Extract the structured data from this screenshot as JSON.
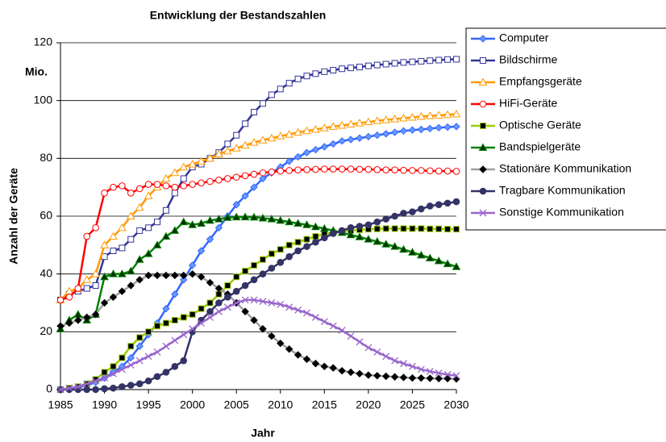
{
  "chart_data": {
    "type": "line",
    "title": "Entwicklung der Bestandszahlen",
    "x_label": "Jahr",
    "y_label": "Anzahl der Geräte",
    "annotation": "Mio.",
    "x": [
      1985,
      1986,
      1987,
      1988,
      1989,
      1990,
      1991,
      1992,
      1993,
      1994,
      1995,
      1996,
      1997,
      1998,
      1999,
      2000,
      2001,
      2002,
      2003,
      2004,
      2005,
      2006,
      2007,
      2008,
      2009,
      2010,
      2011,
      2012,
      2013,
      2014,
      2015,
      2016,
      2017,
      2018,
      2019,
      2020,
      2021,
      2022,
      2023,
      2024,
      2025,
      2026,
      2027,
      2028,
      2029,
      2030
    ],
    "xlim": [
      1985,
      2030
    ],
    "xticks": [
      1985,
      1990,
      1995,
      2000,
      2005,
      2010,
      2015,
      2020,
      2025,
      2030
    ],
    "ylim": [
      0,
      120
    ],
    "yticks": [
      0,
      20,
      40,
      60,
      80,
      100,
      120
    ],
    "grid": true,
    "legend": "right",
    "series": [
      {
        "name": "Computer",
        "color": "#3366ff",
        "marker": "diamond",
        "marker_fill": "#6699ff",
        "values": [
          0,
          0.3,
          0.7,
          1.5,
          2.5,
          4,
          6,
          8,
          11,
          15,
          19,
          23,
          28,
          33,
          38,
          43,
          48,
          52,
          56,
          60,
          64,
          67,
          70,
          73,
          75,
          77,
          79,
          80.5,
          82,
          83,
          84,
          85,
          86,
          86.5,
          87,
          87.5,
          88,
          88.5,
          89,
          89.5,
          89.8,
          90,
          90.3,
          90.6,
          90.8,
          91
        ]
      },
      {
        "name": "Bildschirme",
        "color": "#333399",
        "marker": "square",
        "marker_fill": "#ffffff",
        "values": [
          31,
          33,
          34,
          35,
          36,
          46,
          48,
          49,
          52,
          55,
          56,
          58,
          62,
          68,
          73,
          77,
          78,
          80,
          82,
          85,
          88,
          92,
          96,
          99,
          102,
          104,
          106,
          107.5,
          108.5,
          109.3,
          110,
          110.5,
          111,
          111.3,
          111.6,
          112,
          112.3,
          112.6,
          112.9,
          113.2,
          113.4,
          113.6,
          113.8,
          114,
          114.2,
          114.3
        ]
      },
      {
        "name": "Empfangsgeräte",
        "color": "#ff9900",
        "marker": "triangle",
        "marker_fill": "#ffffff",
        "values": [
          31,
          34,
          35,
          38,
          40,
          50,
          53,
          56,
          60,
          63,
          67,
          70,
          73,
          75,
          77,
          78,
          79,
          80,
          81.5,
          82.5,
          83.5,
          84.5,
          85.5,
          86.3,
          87,
          87.7,
          88.3,
          89,
          89.5,
          90,
          90.5,
          91,
          91.4,
          91.8,
          92.2,
          92.6,
          93,
          93.3,
          93.6,
          93.9,
          94.2,
          94.5,
          94.7,
          94.9,
          95.1,
          95.3
        ]
      },
      {
        "name": "HiFi-Geräte",
        "color": "#ff0000",
        "marker": "circle",
        "marker_fill": "#ffffff",
        "values": [
          31,
          32,
          35,
          53,
          56,
          68,
          70,
          70.5,
          68,
          69.5,
          71,
          71,
          70.5,
          70,
          70.5,
          71,
          71.5,
          72,
          72.5,
          73,
          73.5,
          74,
          74.5,
          75,
          75.3,
          75.6,
          75.8,
          76,
          76.1,
          76.2,
          76.3,
          76.3,
          76.3,
          76.3,
          76.2,
          76.2,
          76.1,
          76,
          76,
          75.9,
          75.8,
          75.8,
          75.7,
          75.6,
          75.6,
          75.5
        ]
      },
      {
        "name": "Optische Geräte",
        "color": "#99cc00",
        "marker": "square",
        "marker_fill": "#000000",
        "values": [
          0,
          0.5,
          1,
          2,
          3.5,
          6,
          8,
          11,
          15,
          18,
          20,
          22,
          23,
          24,
          25,
          26,
          28,
          30,
          33,
          36,
          39,
          41,
          43,
          45,
          47,
          48.5,
          50,
          51,
          52,
          53,
          53.8,
          54.3,
          54.8,
          55,
          55.3,
          55.5,
          55.6,
          55.7,
          55.7,
          55.7,
          55.7,
          55.7,
          55.6,
          55.6,
          55.5,
          55.5
        ]
      },
      {
        "name": "Bandspielgeräte",
        "color": "#008000",
        "marker": "triangle",
        "marker_fill": "#003300",
        "values": [
          21,
          24,
          26,
          24,
          26,
          39,
          40,
          40,
          41,
          45,
          47,
          50,
          53,
          55,
          58,
          57,
          57.5,
          58.5,
          59,
          59.5,
          59.7,
          59.7,
          59.6,
          59.3,
          59,
          58.5,
          58,
          57.5,
          57,
          56.3,
          55.7,
          55,
          54.3,
          53.5,
          52.8,
          52,
          51.2,
          50.3,
          49.5,
          48.5,
          47.5,
          46.5,
          45.5,
          44.5,
          43.5,
          42.5
        ]
      },
      {
        "name": "Stationäre Kommunikation",
        "color": "#a0a0a0",
        "marker": "diamond",
        "marker_fill": "#000000",
        "values": [
          22,
          23,
          24,
          25,
          26,
          30,
          32,
          34,
          36,
          38,
          39.5,
          39.5,
          39.5,
          39.5,
          39.5,
          40,
          39,
          37,
          35,
          33,
          30,
          27,
          24,
          21,
          18.5,
          16,
          14,
          12,
          10.5,
          9,
          8,
          7.5,
          6.5,
          6,
          5.5,
          5,
          4.8,
          4.6,
          4.4,
          4.2,
          4,
          4,
          3.9,
          3.8,
          3.8,
          3.7
        ]
      },
      {
        "name": "Tragbare Kommunikation",
        "color": "#333366",
        "marker": "circle",
        "marker_fill": "#333366",
        "values": [
          0,
          0,
          0,
          0,
          0,
          0.3,
          0.5,
          1,
          1.5,
          2,
          3,
          4.5,
          6,
          8,
          10,
          20,
          24,
          27,
          30,
          32,
          34,
          36,
          38,
          40,
          42,
          44,
          46,
          48,
          49.5,
          51,
          52.5,
          54,
          55,
          56,
          56.5,
          57,
          58,
          59,
          60,
          61,
          61.5,
          62.5,
          63.5,
          64,
          64.5,
          65
        ]
      },
      {
        "name": "Sonstige Kommunikation",
        "color": "#9966cc",
        "marker": "x",
        "marker_fill": "#9966cc",
        "values": [
          0,
          0.5,
          1,
          2,
          3,
          4,
          5.5,
          7,
          8.5,
          10,
          11.5,
          13,
          15,
          17,
          19,
          21,
          23,
          25,
          27,
          28.5,
          30,
          31,
          31,
          30.5,
          30,
          29.5,
          28.5,
          27.5,
          26.5,
          25,
          23.5,
          22,
          20.5,
          18.5,
          16.5,
          14.5,
          13,
          11.5,
          10,
          9,
          8,
          7,
          6.3,
          5.7,
          5.2,
          4.8
        ]
      }
    ]
  }
}
